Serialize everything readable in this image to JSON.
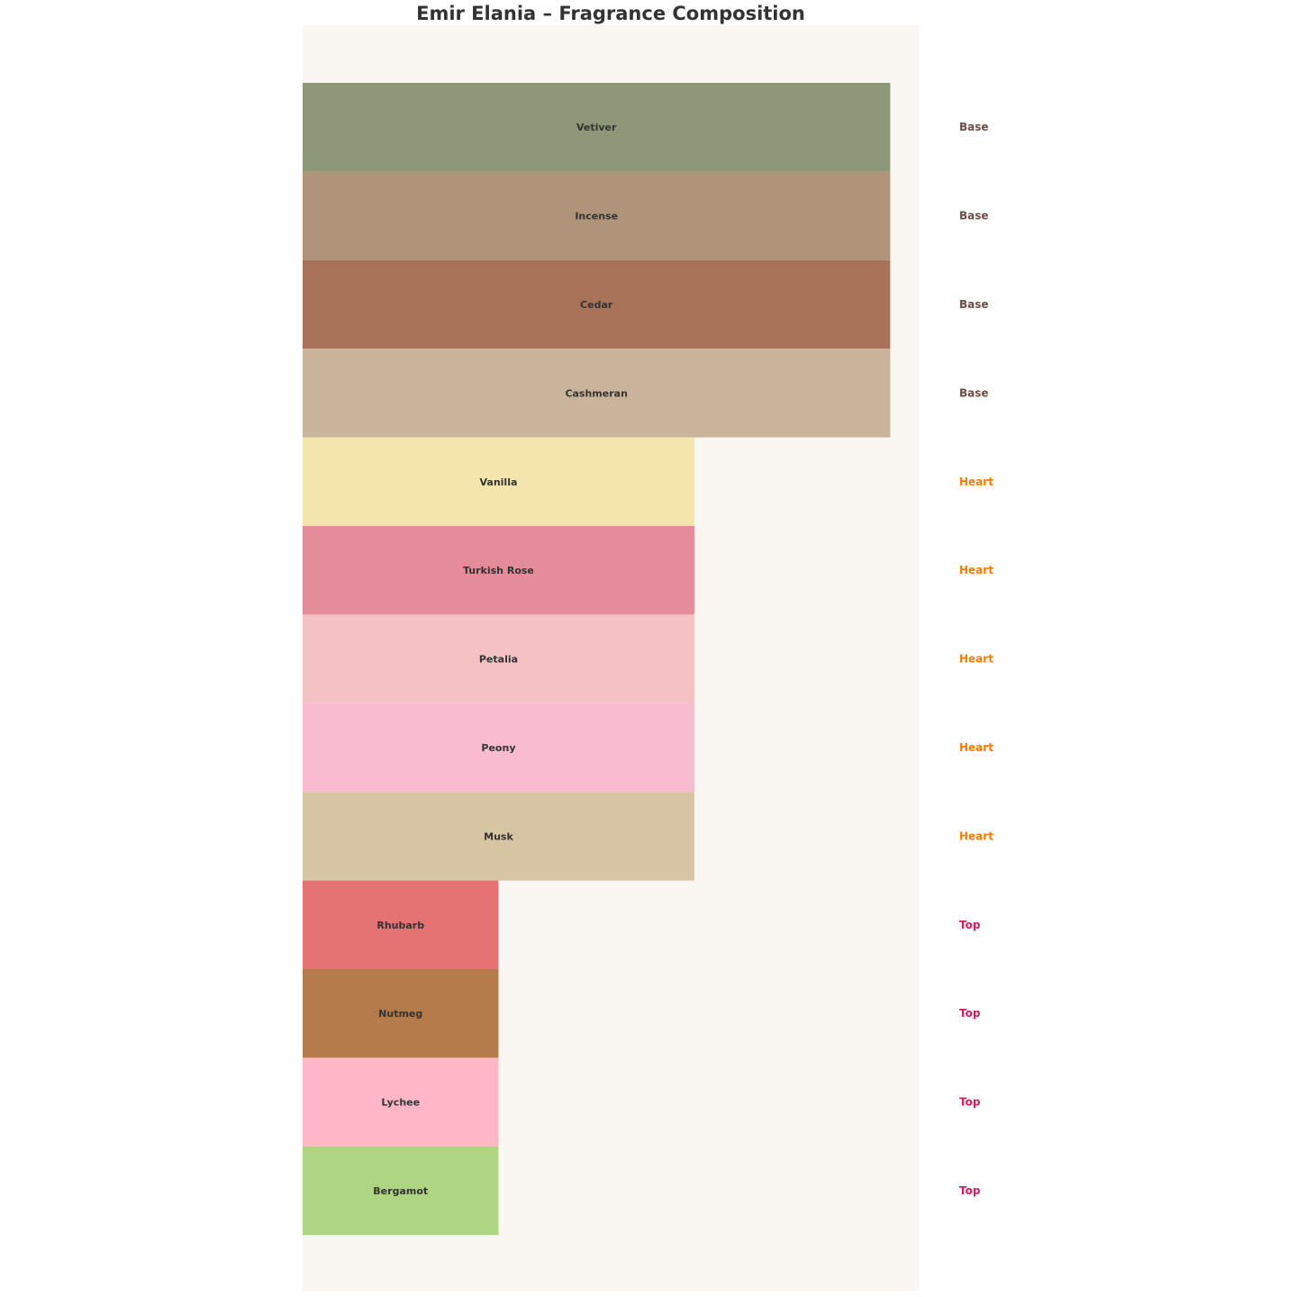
{
  "chart_data": {
    "type": "bar",
    "orientation": "horizontal",
    "title": "Emir Elania – Fragrance Composition",
    "xlabel": "",
    "ylabel": "",
    "xlim": [
      0,
      3.15
    ],
    "grid": false,
    "axes_visible": false,
    "plot_background": "#FAF7F2",
    "categories": [
      "Vetiver",
      "Incense",
      "Cedar",
      "Cashmeran",
      "Vanilla",
      "Turkish Rose",
      "Petalia",
      "Peony",
      "Musk",
      "Rhubarb",
      "Nutmeg",
      "Lychee",
      "Bergamot"
    ],
    "values": [
      3,
      3,
      3,
      3,
      2,
      2,
      2,
      2,
      2,
      1,
      1,
      1,
      1
    ],
    "layers": [
      "Base",
      "Base",
      "Base",
      "Base",
      "Heart",
      "Heart",
      "Heart",
      "Heart",
      "Heart",
      "Top",
      "Top",
      "Top",
      "Top"
    ],
    "bar_colors": [
      "#8F9779",
      "#B09479",
      "#A9735A",
      "#C9B39A",
      "#F3E5AB",
      "#E48C9A",
      "#F4C2C2",
      "#F8BBD0",
      "#D7C4A2",
      "#E57373",
      "#B57B4B",
      "#FFB6C6",
      "#AED581"
    ],
    "layer_colors": {
      "Base": "#6D4C41",
      "Heart": "#F57C00",
      "Top": "#D81B60"
    }
  }
}
